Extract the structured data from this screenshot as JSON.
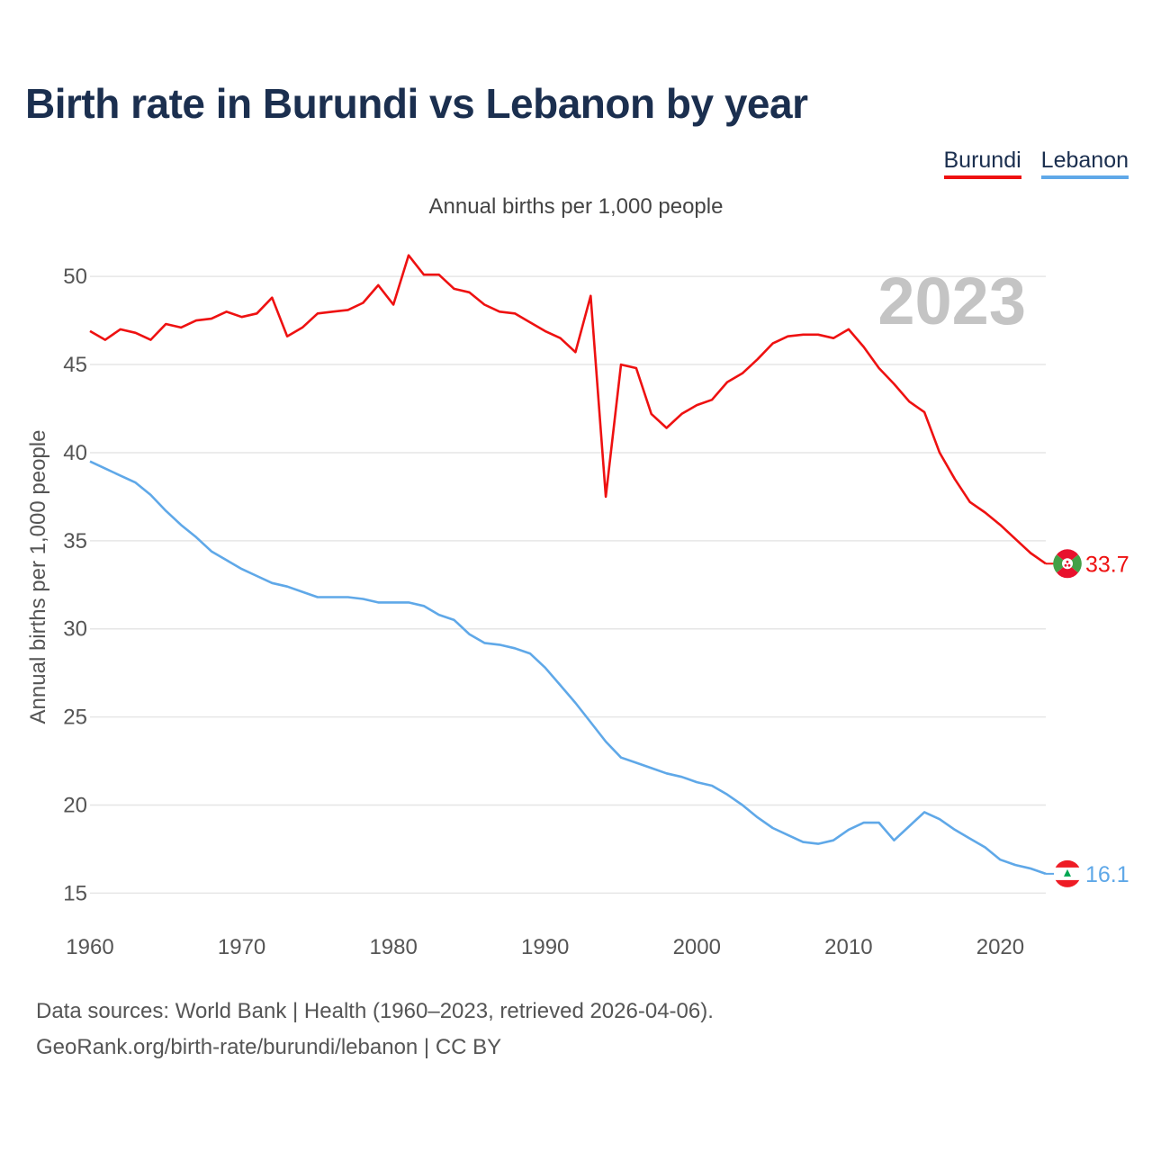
{
  "title": "Birth rate in Burundi vs Lebanon by year",
  "subtitle": "Annual births per 1,000 people",
  "legend": [
    "Burundi",
    "Lebanon"
  ],
  "watermark_year": "2023",
  "source_line1": "Data sources: World Bank | Health (1960–2023, retrieved 2026-04-06).",
  "source_line2": "GeoRank.org/birth-rate/burundi/lebanon | CC BY",
  "colors": {
    "burundi": "#ee1111",
    "lebanon": "#5fa8e8",
    "title": "#1b2f4f",
    "watermark": "#c4c4c4"
  },
  "chart_data": {
    "type": "line",
    "title": "Birth rate in Burundi vs Lebanon by year",
    "ylabel": "Annual births per 1,000 people",
    "xlabel": "",
    "xlim": [
      1960,
      2023
    ],
    "ylim": [
      14,
      52
    ],
    "yticks": [
      15,
      20,
      25,
      30,
      35,
      40,
      45,
      50
    ],
    "xticks": [
      1960,
      1970,
      1980,
      1990,
      2000,
      2010,
      2020
    ],
    "x": [
      1960,
      1961,
      1962,
      1963,
      1964,
      1965,
      1966,
      1967,
      1968,
      1969,
      1970,
      1971,
      1972,
      1973,
      1974,
      1975,
      1976,
      1977,
      1978,
      1979,
      1980,
      1981,
      1982,
      1983,
      1984,
      1985,
      1986,
      1987,
      1988,
      1989,
      1990,
      1991,
      1992,
      1993,
      1994,
      1995,
      1996,
      1997,
      1998,
      1999,
      2000,
      2001,
      2002,
      2003,
      2004,
      2005,
      2006,
      2007,
      2008,
      2009,
      2010,
      2011,
      2012,
      2013,
      2014,
      2015,
      2016,
      2017,
      2018,
      2019,
      2020,
      2021,
      2022,
      2023
    ],
    "series": [
      {
        "name": "Burundi",
        "end_label": "33.7",
        "values": [
          46.9,
          46.4,
          47.0,
          46.8,
          46.4,
          47.3,
          47.1,
          47.5,
          47.6,
          48.0,
          47.7,
          47.9,
          48.8,
          46.6,
          47.1,
          47.9,
          48.0,
          48.1,
          48.5,
          49.5,
          48.4,
          51.2,
          50.1,
          50.1,
          49.3,
          49.1,
          48.4,
          48.0,
          47.9,
          47.4,
          46.9,
          46.5,
          45.7,
          48.9,
          37.5,
          45.0,
          44.8,
          42.2,
          41.4,
          42.2,
          42.7,
          43.0,
          44.0,
          44.5,
          45.3,
          46.2,
          46.6,
          46.7,
          46.7,
          46.5,
          47.0,
          46.0,
          44.8,
          43.9,
          42.9,
          42.3,
          40.0,
          38.5,
          37.2,
          36.6,
          35.9,
          35.1,
          34.3,
          33.7
        ]
      },
      {
        "name": "Lebanon",
        "end_label": "16.1",
        "values": [
          39.5,
          39.1,
          38.7,
          38.3,
          37.6,
          36.7,
          35.9,
          35.2,
          34.4,
          33.9,
          33.4,
          33.0,
          32.6,
          32.4,
          32.1,
          31.8,
          31.8,
          31.8,
          31.7,
          31.5,
          31.5,
          31.5,
          31.3,
          30.8,
          30.5,
          29.7,
          29.2,
          29.1,
          28.9,
          28.6,
          27.8,
          26.8,
          25.8,
          24.7,
          23.6,
          22.7,
          22.4,
          22.1,
          21.8,
          21.6,
          21.3,
          21.1,
          20.6,
          20.0,
          19.3,
          18.7,
          18.3,
          17.9,
          17.8,
          18.0,
          18.6,
          19.0,
          19.0,
          18.0,
          18.8,
          19.6,
          19.2,
          18.6,
          18.1,
          17.6,
          16.9,
          16.6,
          16.4,
          16.1
        ]
      }
    ]
  }
}
